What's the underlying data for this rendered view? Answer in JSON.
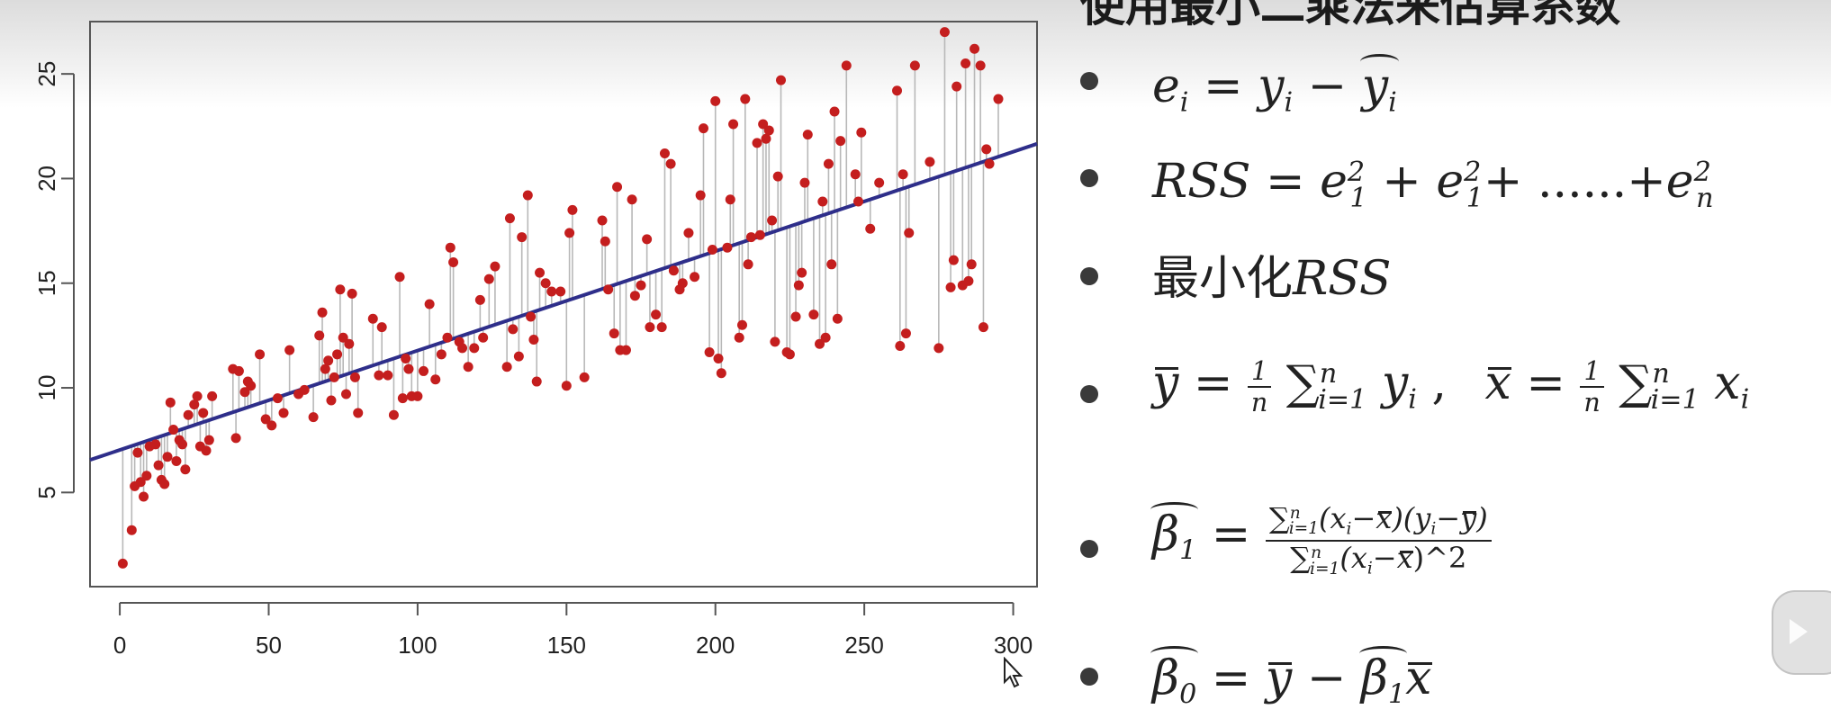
{
  "heading": "使用最小二乘法来估算系数",
  "formulas": {
    "residual": {
      "lhs": "e",
      "i": "i",
      "eq": "=",
      "y": "y",
      "minus": "−"
    },
    "rss": {
      "label": "RSS",
      "eq": "=",
      "e": "e",
      "sub1": "1",
      "sub2": "1",
      "sup": "2",
      "plus": "+",
      "dots": "......+",
      "subn": "n"
    },
    "minimize": {
      "cn": "最小化",
      "label": "RSS"
    },
    "means": {
      "sep": ",",
      "one": "1",
      "n": "n",
      "sum": "∑",
      "lower": "i=1",
      "upper": "n",
      "y": "y",
      "x": "x",
      "i": "i",
      "eq": "="
    },
    "beta1": {
      "beta": "β",
      "sub": "1",
      "eq": "=",
      "numerator_tail": "(x",
      "paren_mid": "−",
      "den_tail": ")^2"
    },
    "beta0": {
      "beta": "β",
      "sub0": "0",
      "sub1": "1",
      "eq": "=",
      "minus": "−",
      "y": "y",
      "x": "x"
    }
  },
  "chart_data": {
    "type": "scatter",
    "x_ticks": [
      0,
      50,
      100,
      150,
      200,
      250,
      300
    ],
    "y_ticks": [
      5,
      10,
      15,
      20,
      25
    ],
    "xlim": [
      -10,
      308
    ],
    "ylim": [
      0.5,
      27.5
    ],
    "grid": false,
    "point_color": "#c41e1e",
    "line_color": "#2e2e8a",
    "residual_color": "#b8b8b8",
    "fit_line": {
      "intercept": 7.03,
      "slope": 0.0475
    },
    "points": [
      [
        1,
        1.6
      ],
      [
        4,
        3.2
      ],
      [
        5,
        5.3
      ],
      [
        6,
        6.9
      ],
      [
        7,
        5.5
      ],
      [
        8,
        4.8
      ],
      [
        9,
        5.8
      ],
      [
        10,
        7.2
      ],
      [
        12,
        7.3
      ],
      [
        13,
        6.3
      ],
      [
        14,
        5.6
      ],
      [
        15,
        5.4
      ],
      [
        16,
        6.7
      ],
      [
        17,
        9.3
      ],
      [
        18,
        8.0
      ],
      [
        19,
        6.5
      ],
      [
        20,
        7.5
      ],
      [
        21,
        7.3
      ],
      [
        22,
        6.1
      ],
      [
        23,
        8.7
      ],
      [
        25,
        9.2
      ],
      [
        26,
        9.6
      ],
      [
        27,
        7.2
      ],
      [
        28,
        8.8
      ],
      [
        29,
        7.0
      ],
      [
        30,
        7.5
      ],
      [
        31,
        9.6
      ],
      [
        38,
        10.9
      ],
      [
        39,
        7.6
      ],
      [
        40,
        10.8
      ],
      [
        42,
        9.8
      ],
      [
        43,
        10.3
      ],
      [
        44,
        10.1
      ],
      [
        47,
        11.6
      ],
      [
        49,
        8.5
      ],
      [
        51,
        8.2
      ],
      [
        53,
        9.5
      ],
      [
        55,
        8.8
      ],
      [
        57,
        11.8
      ],
      [
        60,
        9.7
      ],
      [
        62,
        9.9
      ],
      [
        65,
        8.6
      ],
      [
        67,
        12.5
      ],
      [
        68,
        13.6
      ],
      [
        69,
        10.9
      ],
      [
        70,
        11.3
      ],
      [
        71,
        9.4
      ],
      [
        72,
        10.5
      ],
      [
        73,
        11.6
      ],
      [
        74,
        14.7
      ],
      [
        75,
        12.4
      ],
      [
        76,
        9.7
      ],
      [
        77,
        12.1
      ],
      [
        78,
        14.5
      ],
      [
        79,
        10.5
      ],
      [
        80,
        8.8
      ],
      [
        85,
        13.3
      ],
      [
        87,
        10.6
      ],
      [
        88,
        12.9
      ],
      [
        90,
        10.6
      ],
      [
        92,
        8.7
      ],
      [
        94,
        15.3
      ],
      [
        95,
        9.5
      ],
      [
        96,
        11.4
      ],
      [
        97,
        10.9
      ],
      [
        98,
        9.6
      ],
      [
        100,
        9.6
      ],
      [
        102,
        10.8
      ],
      [
        104,
        14.0
      ],
      [
        106,
        10.4
      ],
      [
        108,
        11.6
      ],
      [
        110,
        12.4
      ],
      [
        111,
        16.7
      ],
      [
        112,
        16.0
      ],
      [
        114,
        12.2
      ],
      [
        115,
        11.9
      ],
      [
        117,
        11.0
      ],
      [
        119,
        11.9
      ],
      [
        121,
        14.2
      ],
      [
        122,
        12.4
      ],
      [
        124,
        15.2
      ],
      [
        126,
        15.8
      ],
      [
        130,
        11.0
      ],
      [
        131,
        18.1
      ],
      [
        132,
        12.8
      ],
      [
        134,
        11.5
      ],
      [
        135,
        17.2
      ],
      [
        137,
        19.2
      ],
      [
        138,
        13.4
      ],
      [
        139,
        12.3
      ],
      [
        140,
        10.3
      ],
      [
        141,
        15.5
      ],
      [
        143,
        15.0
      ],
      [
        145,
        14.6
      ],
      [
        148,
        14.6
      ],
      [
        150,
        10.1
      ],
      [
        151,
        17.4
      ],
      [
        152,
        18.5
      ],
      [
        156,
        10.5
      ],
      [
        162,
        18.0
      ],
      [
        163,
        17.0
      ],
      [
        164,
        14.7
      ],
      [
        166,
        12.6
      ],
      [
        167,
        19.6
      ],
      [
        168,
        11.8
      ],
      [
        170,
        11.8
      ],
      [
        172,
        19.0
      ],
      [
        173,
        14.4
      ],
      [
        175,
        14.9
      ],
      [
        177,
        17.1
      ],
      [
        178,
        12.9
      ],
      [
        180,
        13.5
      ],
      [
        182,
        12.9
      ],
      [
        183,
        21.2
      ],
      [
        185,
        20.7
      ],
      [
        186,
        15.6
      ],
      [
        188,
        14.7
      ],
      [
        189,
        15.0
      ],
      [
        191,
        17.4
      ],
      [
        193,
        15.3
      ],
      [
        195,
        19.2
      ],
      [
        196,
        22.4
      ],
      [
        198,
        11.7
      ],
      [
        199,
        16.6
      ],
      [
        200,
        23.7
      ],
      [
        201,
        11.4
      ],
      [
        202,
        10.7
      ],
      [
        204,
        16.7
      ],
      [
        205,
        19.0
      ],
      [
        206,
        22.6
      ],
      [
        208,
        12.4
      ],
      [
        209,
        13.0
      ],
      [
        210,
        23.8
      ],
      [
        211,
        15.9
      ],
      [
        212,
        17.2
      ],
      [
        214,
        21.7
      ],
      [
        215,
        17.3
      ],
      [
        216,
        22.6
      ],
      [
        217,
        21.9
      ],
      [
        218,
        22.3
      ],
      [
        219,
        18.0
      ],
      [
        220,
        12.2
      ],
      [
        221,
        20.1
      ],
      [
        222,
        24.7
      ],
      [
        224,
        11.7
      ],
      [
        225,
        11.6
      ],
      [
        227,
        13.4
      ],
      [
        228,
        14.9
      ],
      [
        229,
        15.5
      ],
      [
        230,
        19.8
      ],
      [
        231,
        22.1
      ],
      [
        233,
        13.5
      ],
      [
        235,
        12.1
      ],
      [
        236,
        18.9
      ],
      [
        237,
        12.4
      ],
      [
        238,
        20.7
      ],
      [
        239,
        15.9
      ],
      [
        240,
        23.2
      ],
      [
        241,
        13.3
      ],
      [
        242,
        21.8
      ],
      [
        244,
        25.4
      ],
      [
        247,
        20.2
      ],
      [
        248,
        18.9
      ],
      [
        249,
        22.2
      ],
      [
        252,
        17.6
      ],
      [
        255,
        19.8
      ],
      [
        261,
        24.2
      ],
      [
        262,
        12.0
      ],
      [
        263,
        20.2
      ],
      [
        264,
        12.6
      ],
      [
        265,
        17.4
      ],
      [
        267,
        25.4
      ],
      [
        272,
        20.8
      ],
      [
        275,
        11.9
      ],
      [
        277,
        27.0
      ],
      [
        279,
        14.8
      ],
      [
        280,
        16.1
      ],
      [
        281,
        24.4
      ],
      [
        283,
        14.9
      ],
      [
        284,
        25.5
      ],
      [
        285,
        15.1
      ],
      [
        286,
        15.9
      ],
      [
        287,
        26.2
      ],
      [
        289,
        25.4
      ],
      [
        290,
        12.9
      ],
      [
        291,
        21.4
      ],
      [
        292,
        20.7
      ],
      [
        295,
        23.8
      ]
    ]
  }
}
